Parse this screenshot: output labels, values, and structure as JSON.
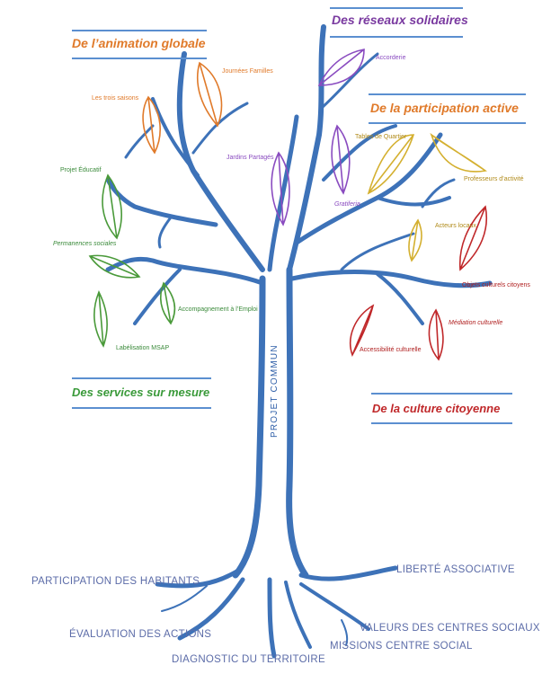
{
  "sections": {
    "animation": {
      "title": "De l’animation globale",
      "color": "#e07a2a"
    },
    "reseaux": {
      "title": "Des réseaux solidaires",
      "color": "#7a3aa0"
    },
    "participation": {
      "title": "De la participation active",
      "color": "#e07a2a"
    },
    "services": {
      "title": "Des services sur mesure",
      "color": "#3a9a3a"
    },
    "culture": {
      "title": "De la culture citoyenne",
      "color": "#c0282a"
    }
  },
  "leaves": {
    "journees_familles": "Journées Familles",
    "trois_saisons": "Les trois saisons",
    "accorderie": "Accorderie",
    "jardins": "Jardins Partagés",
    "gratiferia": "Gratiferia",
    "tables_quartier": "Tables de Quartier",
    "professeurs": "Professeurs d’activité",
    "acteurs": "Acteurs locaux",
    "projet_educatif": "Projet Éducatif",
    "permanences": "Permanences sociales",
    "accompagnement": "Accompagnement à l’Emploi",
    "labelisation": "Labélisation MSAP",
    "objets": "Objets culturels citoyens",
    "mediation": "Médiation culturelle",
    "accessibilite": "Accessibilité culturelle"
  },
  "trunk_label": "PROJET COMMUN",
  "roots": {
    "participation": "PARTICIPATION DES HABITANTS",
    "liberte": "LIBERTÉ ASSOCIATIVE",
    "evaluation": "ÉVALUATION DES ACTIONS",
    "valeurs": "VALEURS DES CENTRES SOCIAUX",
    "diagnostic": "DIAGNOSTIC DU TERRITOIRE",
    "missions": "MISSIONS CENTRE SOCIAL"
  },
  "colors": {
    "tree": "#3d72b8",
    "orange": "#e07a2a",
    "purple": "#8a4cc0",
    "gold": "#d4b030",
    "green": "#4a9a3a",
    "red": "#c0282a",
    "roots_text": "#5c6ca8"
  }
}
